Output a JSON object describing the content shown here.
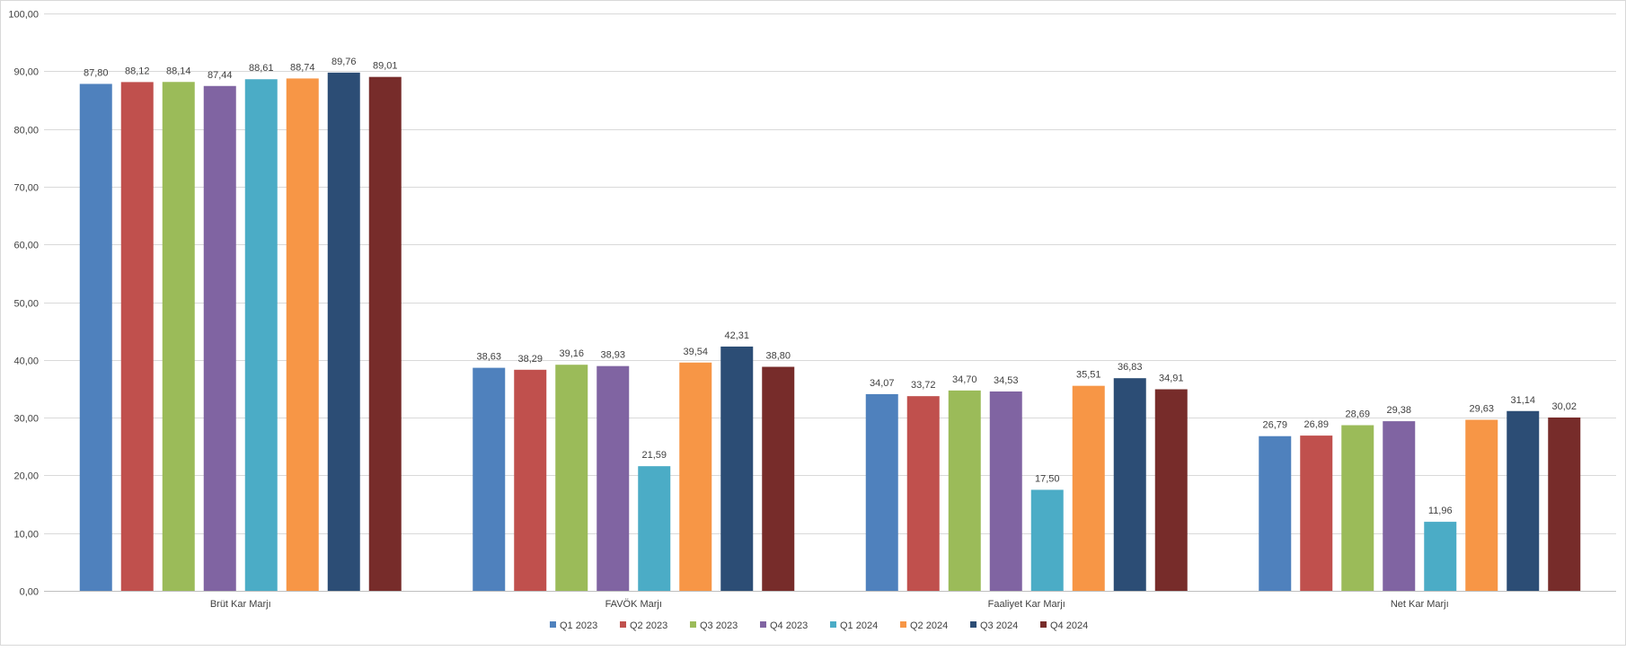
{
  "chart_data": {
    "type": "bar",
    "title": "",
    "xlabel": "",
    "ylabel": "",
    "ylim": [
      0,
      100
    ],
    "y_ticks": [
      "0,00",
      "10,00",
      "20,00",
      "30,00",
      "40,00",
      "50,00",
      "60,00",
      "70,00",
      "80,00",
      "90,00",
      "100,00"
    ],
    "y_tick_values": [
      0,
      10,
      20,
      30,
      40,
      50,
      60,
      70,
      80,
      90,
      100
    ],
    "grid": "horizontal",
    "legend_position": "bottom",
    "categories": [
      "Brüt Kar Marjı",
      "FAVÖK Marjı",
      "Faaliyet Kar Marjı",
      "Net Kar Marjı"
    ],
    "series": [
      {
        "name": "Q1 2023",
        "color": "#4F81BD",
        "values": [
          87.8,
          38.63,
          34.07,
          26.79
        ],
        "labels": [
          "87,80",
          "38,63",
          "34,07",
          "26,79"
        ]
      },
      {
        "name": "Q2 2023",
        "color": "#C0504D",
        "values": [
          88.12,
          38.29,
          33.72,
          26.89
        ],
        "labels": [
          "88,12",
          "38,29",
          "33,72",
          "26,89"
        ]
      },
      {
        "name": "Q3 2023",
        "color": "#9BBB59",
        "values": [
          88.14,
          39.16,
          34.7,
          28.69
        ],
        "labels": [
          "88,14",
          "39,16",
          "34,70",
          "28,69"
        ]
      },
      {
        "name": "Q4 2023",
        "color": "#8064A2",
        "values": [
          87.44,
          38.93,
          34.53,
          29.38
        ],
        "labels": [
          "87,44",
          "38,93",
          "34,53",
          "29,38"
        ]
      },
      {
        "name": "Q1 2024",
        "color": "#4BACC6",
        "values": [
          88.61,
          21.59,
          17.5,
          11.96
        ],
        "labels": [
          "88,61",
          "21,59",
          "17,50",
          "11,96"
        ]
      },
      {
        "name": "Q2 2024",
        "color": "#F79646",
        "values": [
          88.74,
          39.54,
          35.51,
          29.63
        ],
        "labels": [
          "88,74",
          "39,54",
          "35,51",
          "29,63"
        ]
      },
      {
        "name": "Q3 2024",
        "color": "#2C4D75",
        "values": [
          89.76,
          42.31,
          36.83,
          31.14
        ],
        "labels": [
          "89,76",
          "42,31",
          "36,83",
          "31,14"
        ]
      },
      {
        "name": "Q4 2024",
        "color": "#772C2A",
        "values": [
          89.01,
          38.8,
          34.91,
          30.02
        ],
        "labels": [
          "89,01",
          "38,80",
          "34,91",
          "30,02"
        ]
      }
    ]
  }
}
